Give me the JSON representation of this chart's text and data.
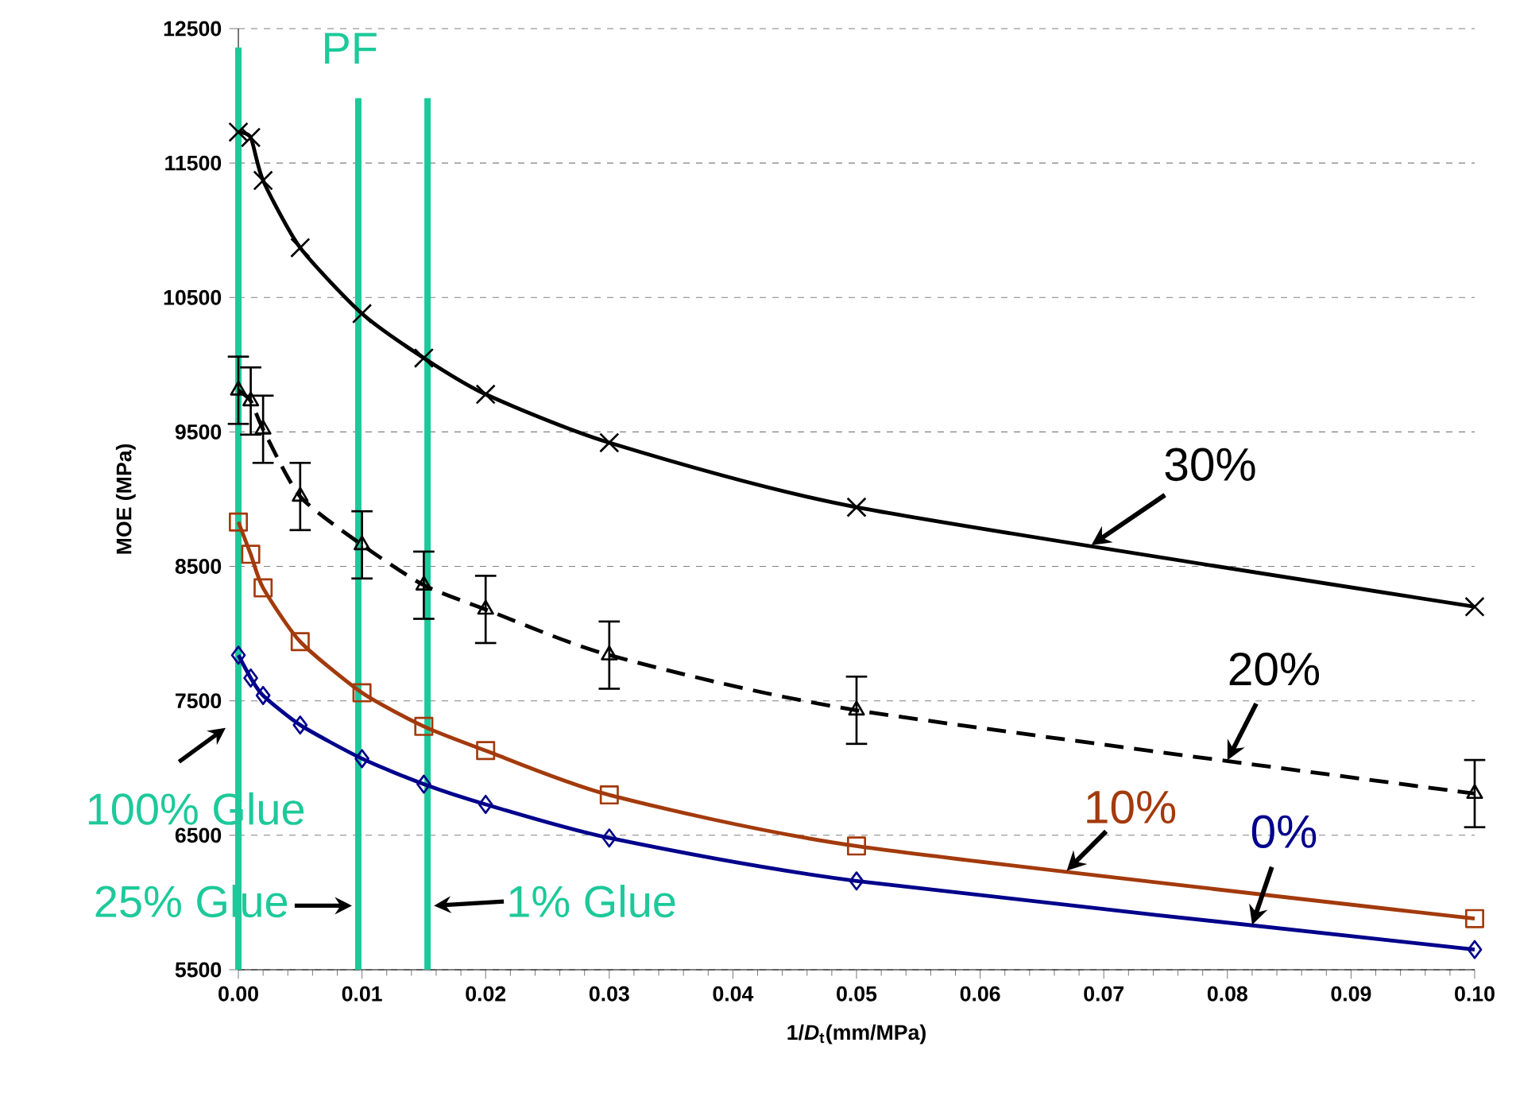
{
  "chart_data": {
    "type": "line",
    "xlabel": "1/*D*$_{t}$(mm/MPa)",
    "ylabel": "MOE (MPa)",
    "x": [
      0,
      0.001,
      0.002,
      0.005,
      0.01,
      0.015,
      0.02,
      0.03,
      0.05,
      0.1
    ],
    "series": [
      {
        "name": "30%",
        "color": "#000000",
        "marker": "cross",
        "line_style": "solid",
        "values": [
          11730,
          11690,
          11370,
          10870,
          10380,
          10050,
          9780,
          9420,
          8940,
          8200
        ]
      },
      {
        "name": "20%",
        "color": "#000000",
        "marker": "triangle",
        "line_style": "dashed",
        "values": [
          9810,
          9730,
          9520,
          9020,
          8660,
          8360,
          8180,
          7840,
          7430,
          6810
        ],
        "errors": [
          250,
          250,
          250,
          250,
          250,
          250,
          250,
          250,
          250,
          250
        ]
      },
      {
        "name": "10%",
        "color": "#a33a0c",
        "marker": "square",
        "line_style": "solid",
        "values": [
          8830,
          8590,
          8340,
          7940,
          7560,
          7310,
          7130,
          6800,
          6420,
          5880
        ]
      },
      {
        "name": "0%",
        "color": "#00008b",
        "marker": "diamond",
        "line_style": "solid",
        "values": [
          7840,
          7670,
          7540,
          7320,
          7070,
          6880,
          6730,
          6480,
          6160,
          5650
        ]
      }
    ],
    "xlim": [
      0,
      0.1
    ],
    "ylim": [
      5500,
      12500
    ],
    "xticks": [
      {
        "value": 0,
        "label": "0.00"
      },
      {
        "value": 0.01,
        "label": "0.01"
      },
      {
        "value": 0.02,
        "label": "0.02"
      },
      {
        "value": 0.03,
        "label": "0.03"
      },
      {
        "value": 0.04,
        "label": "0.04"
      },
      {
        "value": 0.05,
        "label": "0.05"
      },
      {
        "value": 0.06,
        "label": "0.06"
      },
      {
        "value": 0.07,
        "label": "0.07"
      },
      {
        "value": 0.08,
        "label": "0.08"
      },
      {
        "value": 0.09,
        "label": "0.09"
      },
      {
        "value": 0.1,
        "label": "0.10"
      }
    ],
    "yticks": [
      5500,
      6500,
      7500,
      8500,
      9500,
      10500,
      11500,
      12500
    ],
    "grid": "y",
    "ref_lines": [
      {
        "axis": "x",
        "value": 0,
        "label": "100% Glue",
        "color": "#1dc99a"
      },
      {
        "axis": "x",
        "value": 0.0097,
        "label": "25% Glue",
        "color": "#1dc99a"
      },
      {
        "axis": "x",
        "value": 0.0153,
        "label": "1% Glue",
        "color": "#1dc99a"
      }
    ],
    "annotations": [
      "PF"
    ]
  }
}
